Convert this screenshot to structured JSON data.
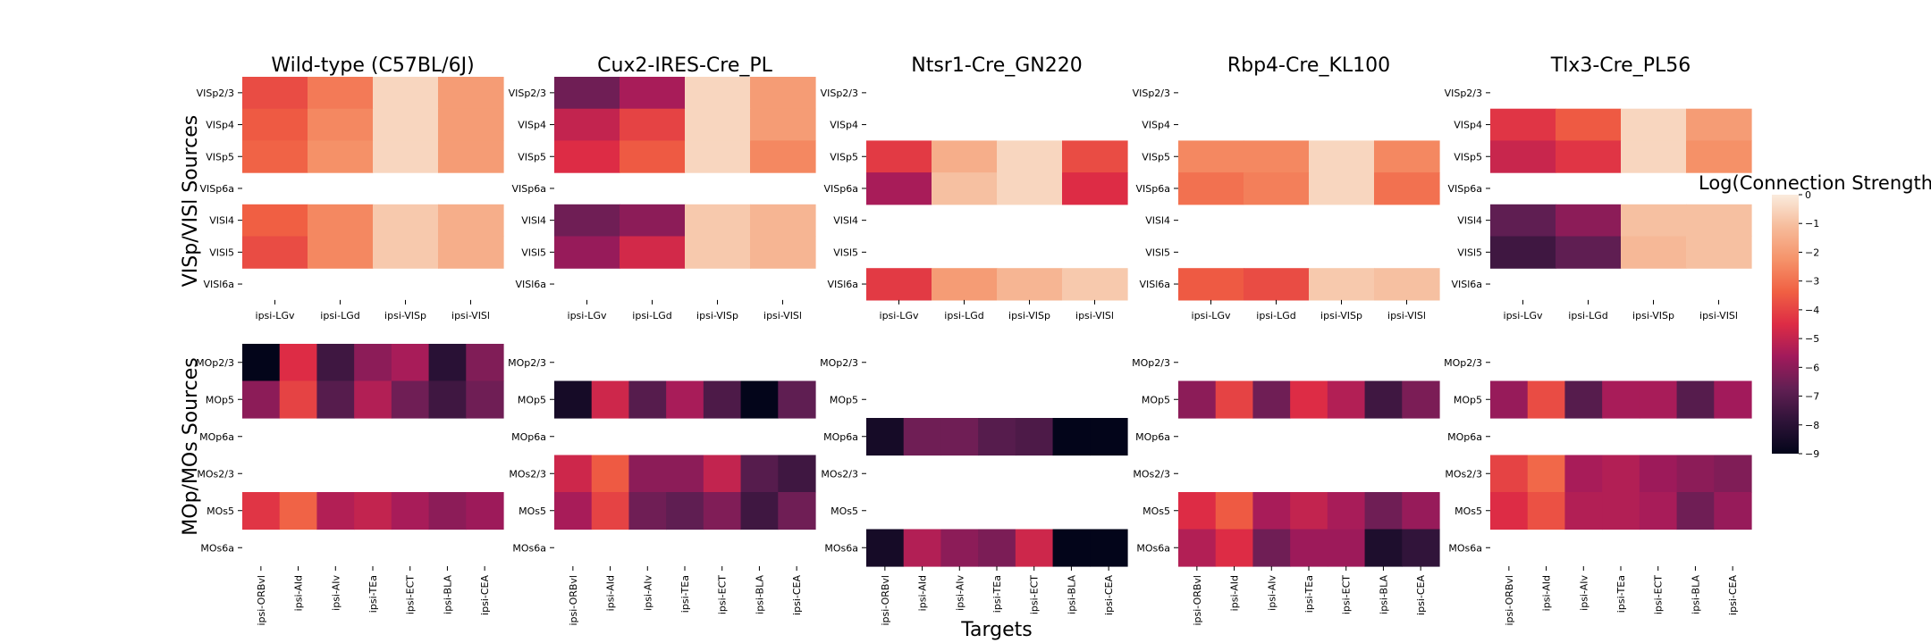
{
  "colorbar": {
    "title": "Log(Connection Strength)",
    "min": -9,
    "max": 0,
    "ticks": [
      "0",
      "−1",
      "−2",
      "−3",
      "−4",
      "−5",
      "−6",
      "−7",
      "−8",
      "−9"
    ],
    "colormap": "rocket",
    "stops": [
      "#03051a",
      "#2e1338",
      "#611f53",
      "#a11a5b",
      "#dd2c45",
      "#f06043",
      "#f5936a",
      "#f6bb9a",
      "#faebdd"
    ]
  },
  "labels": {
    "y_top": "VISp/VISl Sources",
    "y_bottom": "MOp/MOs Sources",
    "x_bottom": "Targets"
  },
  "chart_data": {
    "type": "heatmap",
    "panels": [
      "Wild-type (C57BL/6J)",
      "Cux2-IRES-Cre_PL",
      "Ntsr1-Cre_GN220",
      "Rbp4-Cre_KL100",
      "Tlx3-Cre_PL56"
    ],
    "top_rows": [
      "VISp2/3",
      "VISp4",
      "VISp5",
      "VISp6a",
      "VISl4",
      "VISl5",
      "VISl6a"
    ],
    "top_cols": [
      "ipsi-LGv",
      "ipsi-LGd",
      "ipsi-VISp",
      "ipsi-VISl"
    ],
    "bottom_rows": [
      "MOp2/3",
      "MOp5",
      "MOp6a",
      "MOs2/3",
      "MOs5",
      "MOs6a"
    ],
    "bottom_cols": [
      "ipsi-ORBvl",
      "ipsi-AId",
      "ipsi-AIv",
      "ipsi-TEa",
      "ipsi-ECT",
      "ipsi-BLA",
      "ipsi-CEA"
    ],
    "top_values": [
      [
        [
          -3.8,
          -2.8,
          -0.5,
          -2.0
        ],
        [
          -3.5,
          -2.5,
          -0.5,
          -2.0
        ],
        [
          -3.3,
          -2.3,
          -0.5,
          -2.0
        ],
        null,
        [
          -3.4,
          -2.5,
          -0.8,
          -1.5
        ],
        [
          -3.8,
          -2.5,
          -0.8,
          -1.5
        ],
        null
      ],
      [
        [
          -6.5,
          -5.5,
          -0.5,
          -2.0
        ],
        [
          -5.0,
          -4.0,
          -0.5,
          -2.0
        ],
        [
          -4.5,
          -3.5,
          -0.5,
          -2.5
        ],
        null,
        [
          -6.5,
          -6.0,
          -0.8,
          -1.3
        ],
        [
          -5.8,
          -4.7,
          -0.8,
          -1.3
        ],
        null
      ],
      [
        null,
        null,
        [
          -4.2,
          -1.5,
          -0.5,
          -3.8
        ],
        [
          -5.5,
          -1.0,
          -0.5,
          -4.5
        ],
        null,
        null,
        [
          -4.2,
          -2.0,
          -1.3,
          -0.8
        ]
      ],
      [
        null,
        null,
        [
          -2.5,
          -2.5,
          -0.5,
          -2.5
        ],
        [
          -3.0,
          -2.7,
          -0.5,
          -3.0
        ],
        null,
        null,
        [
          -3.5,
          -3.8,
          -0.8,
          -1.0
        ]
      ],
      [
        null,
        [
          -4.3,
          -3.5,
          -0.5,
          -2.0
        ],
        [
          -4.9,
          -4.3,
          -0.5,
          -2.3
        ],
        null,
        [
          -6.8,
          -6.0,
          -1.0,
          -1.0
        ],
        [
          -7.5,
          -6.8,
          -1.2,
          -1.0
        ],
        null
      ]
    ],
    "bottom_values": [
      [
        [
          -9.0,
          -4.5,
          -7.5,
          -6.0,
          -5.5,
          -8.0,
          -6.2
        ],
        [
          -6.0,
          -4.0,
          -7.0,
          -5.3,
          -6.5,
          -7.5,
          -6.5
        ],
        null,
        null,
        [
          -4.3,
          -3.3,
          -5.3,
          -5.0,
          -5.5,
          -6.0,
          -5.7
        ],
        null
      ],
      [
        null,
        [
          -8.5,
          -4.8,
          -7.0,
          -5.5,
          -7.2,
          -9.0,
          -6.8
        ],
        null,
        [
          -4.8,
          -3.5,
          -6.0,
          -6.0,
          -5.0,
          -7.0,
          -7.5
        ],
        [
          -5.5,
          -4.0,
          -6.5,
          -6.8,
          -6.2,
          -7.5,
          -6.5
        ],
        null
      ],
      [
        null,
        null,
        [
          -8.5,
          -6.5,
          -6.5,
          -7.0,
          -7.2,
          -9.0,
          -9.0
        ],
        null,
        null,
        [
          -8.5,
          -5.3,
          -6.0,
          -6.3,
          -4.8,
          -9.0,
          -9.0
        ]
      ],
      [
        null,
        [
          -6.0,
          -4.0,
          -6.5,
          -4.5,
          -5.3,
          -7.5,
          -6.3
        ],
        null,
        null,
        [
          -4.5,
          -3.5,
          -5.5,
          -5.0,
          -5.5,
          -6.5,
          -5.8
        ],
        [
          -5.3,
          -4.5,
          -6.5,
          -5.7,
          -5.7,
          -8.3,
          -7.8
        ]
      ],
      [
        null,
        [
          -5.8,
          -3.8,
          -7.0,
          -5.5,
          -5.5,
          -7.0,
          -5.6
        ],
        null,
        [
          -4.0,
          -3.2,
          -5.5,
          -5.3,
          -5.7,
          -6.0,
          -6.2
        ],
        [
          -4.5,
          -3.7,
          -5.3,
          -5.3,
          -5.5,
          -6.5,
          -5.8
        ],
        null
      ]
    ],
    "xlabel": "Targets",
    "ylim": [
      -9,
      0
    ]
  }
}
